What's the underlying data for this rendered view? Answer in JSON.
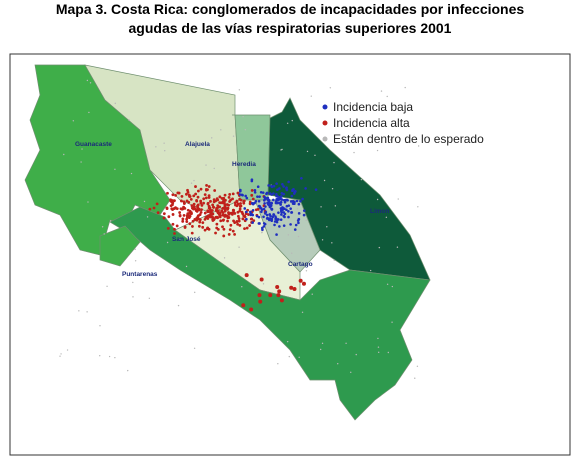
{
  "title": {
    "line1": "Mapa 3. Costa Rica: conglomerados de incapacidades por infecciones",
    "line2": "agudas de las vías respiratorias superiores 2001"
  },
  "legend": [
    {
      "label": "Incidencia baja",
      "color": "#1f2fbf"
    },
    {
      "label": "Incidencia alta",
      "color": "#c0201b"
    },
    {
      "label": "Están dentro de lo esperado",
      "color": "#b8b8b8"
    }
  ],
  "provinces": [
    "Guanacaste",
    "Alajuela",
    "Heredia",
    "Limon",
    "San José",
    "Puntarenas",
    "Cartago"
  ]
}
